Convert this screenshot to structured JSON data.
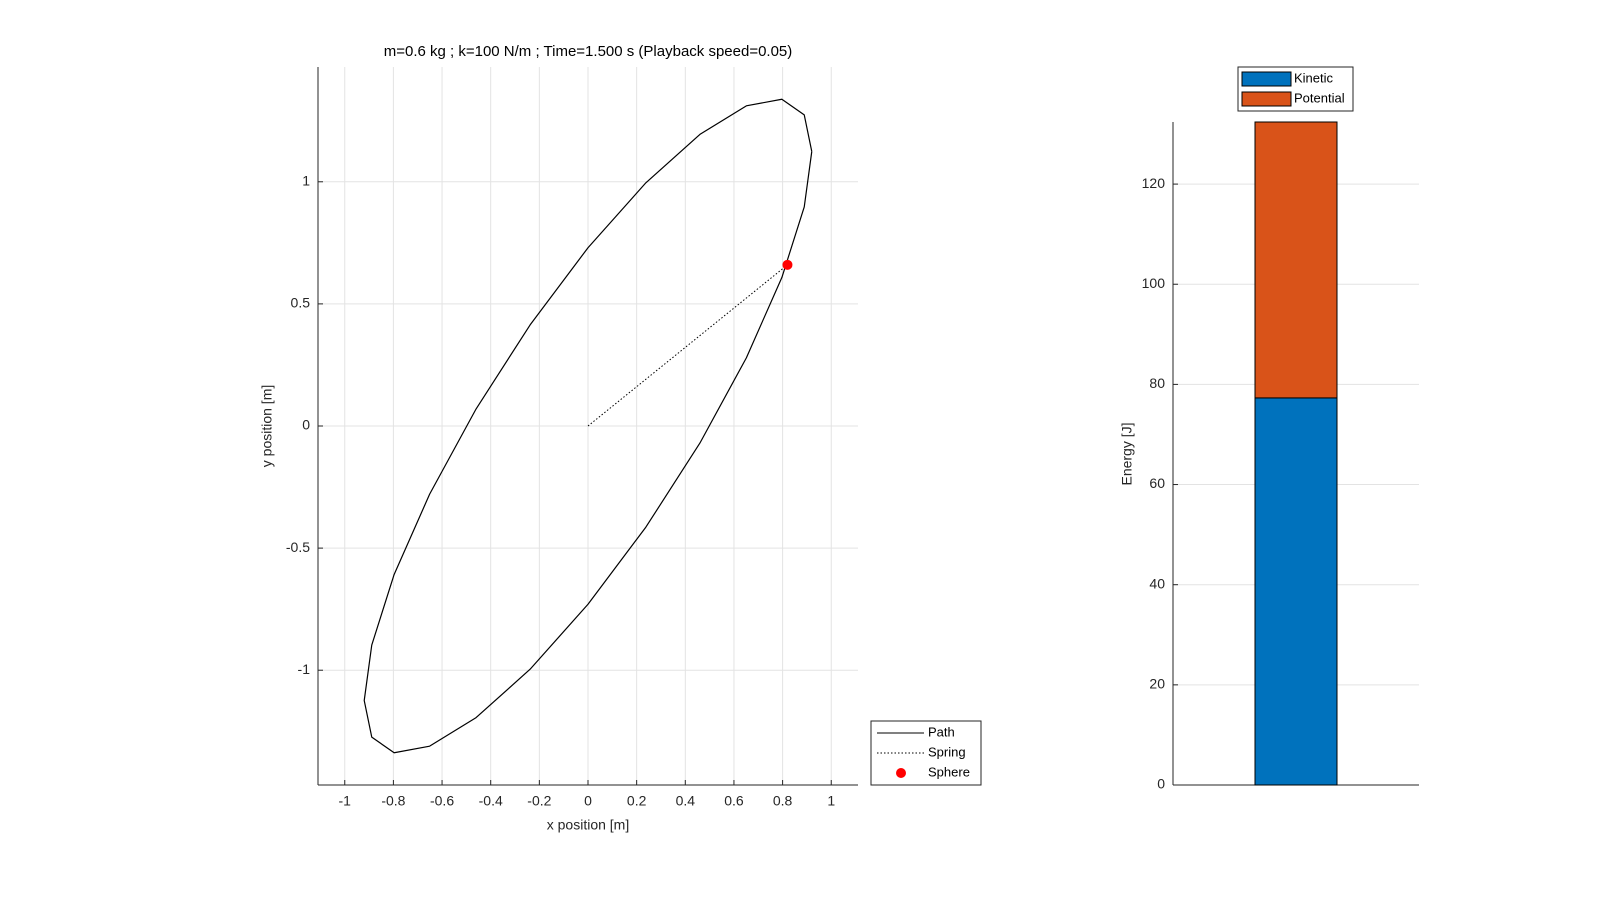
{
  "chart_data": [
    {
      "type": "line",
      "title": "m=0.6 kg ; k=100 N/m ; Time=1.500 s (Playback speed=0.05)",
      "xlabel": "x position [m]",
      "ylabel": "y position [m]",
      "xlim": [
        -1.11,
        1.11
      ],
      "ylim": [
        -1.47,
        1.47
      ],
      "xticks": [
        -1,
        -0.8,
        -0.6,
        -0.4,
        -0.2,
        0,
        0.2,
        0.4,
        0.6,
        0.8,
        1
      ],
      "yticks": [
        -1,
        -0.5,
        0,
        0.5,
        1
      ],
      "grid": true,
      "legend": "southeastoutside",
      "series": [
        {
          "name": "Path",
          "color": "#000000",
          "linestyle": "solid",
          "x": [
            0.92,
            0.889,
            0.797,
            0.651,
            0.46,
            0.238,
            0,
            -0.238,
            -0.46,
            -0.651,
            -0.797,
            -0.889,
            -0.92,
            -0.889,
            -0.797,
            -0.651,
            -0.46,
            -0.238,
            0,
            0.238,
            0.46,
            0.651,
            0.797,
            0.889,
            0.92
          ],
          "y": [
            1.124,
            1.274,
            1.338,
            1.311,
            1.194,
            0.996,
            0.73,
            0.414,
            0.07,
            -0.279,
            -0.608,
            -0.897,
            -1.124,
            -1.274,
            -1.338,
            -1.311,
            -1.194,
            -0.996,
            -0.73,
            -0.414,
            -0.07,
            0.279,
            0.608,
            0.897,
            1.124
          ]
        },
        {
          "name": "Spring",
          "color": "#000000",
          "linestyle": "dotted",
          "x": [
            0,
            0.82
          ],
          "y": [
            0,
            0.66
          ]
        },
        {
          "name": "Sphere",
          "color": "#ff0000",
          "marker": "circle",
          "x": [
            0.82
          ],
          "y": [
            0.66
          ]
        }
      ]
    },
    {
      "type": "stacked_bar",
      "ylabel": "Energy [J]",
      "categories": [
        null
      ],
      "ylim": [
        0,
        132.4
      ],
      "yticks": [
        0,
        20,
        40,
        60,
        80,
        100,
        120
      ],
      "grid": true,
      "legend": "northoutside",
      "series": [
        {
          "name": "Kinetic",
          "color": "#0072bd",
          "values": [
            77.3
          ]
        },
        {
          "name": "Potential",
          "color": "#d95319",
          "values": [
            55.1
          ]
        }
      ]
    }
  ]
}
